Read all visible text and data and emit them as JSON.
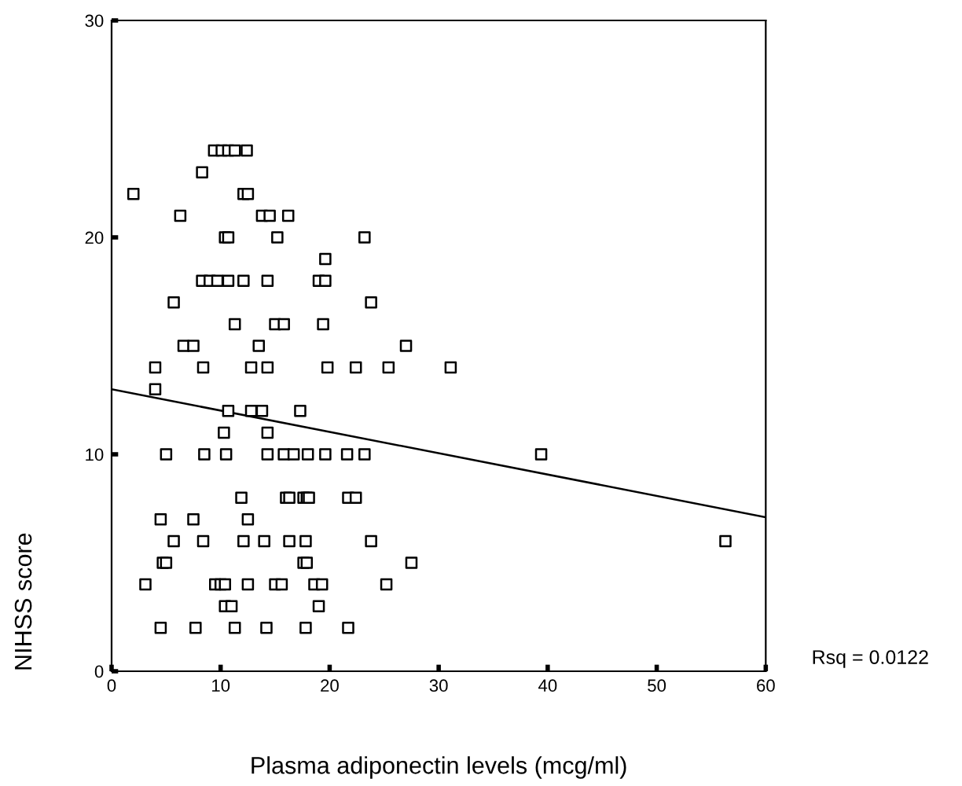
{
  "chart_data": {
    "type": "scatter",
    "xlabel": "Plasma adiponectin levels (mcg/ml)",
    "ylabel": "NIHSS score",
    "annotations": [
      "Rsq = 0.0122"
    ],
    "xlim": [
      0,
      60
    ],
    "ylim": [
      0,
      30
    ],
    "xticks": [
      0,
      10,
      20,
      30,
      40,
      50,
      60
    ],
    "yticks": [
      0,
      10,
      20,
      30
    ],
    "grid": false,
    "legend": false,
    "marker": "square",
    "series": [
      {
        "color": "#000000",
        "x": [
          9.4,
          10.1,
          10.7,
          11.3,
          12.4,
          8.3,
          2.0,
          12.1,
          12.5,
          6.3,
          13.8,
          14.5,
          16.2,
          10.4,
          10.7,
          15.2,
          23.2,
          19.6,
          8.3,
          9.0,
          9.7,
          10.7,
          12.1,
          14.3,
          19.0,
          19.6,
          5.7,
          23.8,
          11.3,
          15.0,
          15.8,
          19.4,
          6.6,
          7.5,
          13.5,
          27.0,
          4.0,
          8.4,
          12.8,
          14.3,
          19.8,
          22.4,
          25.4,
          31.1,
          4.0,
          10.7,
          12.8,
          13.8,
          17.3,
          10.3,
          14.3,
          5.0,
          8.5,
          10.5,
          14.3,
          15.8,
          16.7,
          18.0,
          19.6,
          21.6,
          23.2,
          39.4,
          11.9,
          16.0,
          16.3,
          17.6,
          17.9,
          18.1,
          21.7,
          22.4,
          4.5,
          7.5,
          12.5,
          5.7,
          8.4,
          12.1,
          14.0,
          16.3,
          17.8,
          23.8,
          56.3,
          4.7,
          5.0,
          17.6,
          17.9,
          27.5,
          3.1,
          9.5,
          10.0,
          10.4,
          12.5,
          15.0,
          15.6,
          18.6,
          19.3,
          25.2,
          10.4,
          11.0,
          19.0,
          4.5,
          7.7,
          11.3,
          14.2,
          17.8,
          21.7
        ],
        "values": [
          24,
          24,
          24,
          24,
          24,
          23,
          22,
          22,
          22,
          21,
          21,
          21,
          21,
          20,
          20,
          20,
          20,
          19,
          18,
          18,
          18,
          18,
          18,
          18,
          18,
          18,
          17,
          17,
          16,
          16,
          16,
          16,
          15,
          15,
          15,
          15,
          14,
          14,
          14,
          14,
          14,
          14,
          14,
          14,
          13,
          12,
          12,
          12,
          12,
          11,
          11,
          10,
          10,
          10,
          10,
          10,
          10,
          10,
          10,
          10,
          10,
          10,
          8,
          8,
          8,
          8,
          8,
          8,
          8,
          8,
          7,
          7,
          7,
          6,
          6,
          6,
          6,
          6,
          6,
          6,
          6,
          5,
          5,
          5,
          5,
          5,
          4,
          4,
          4,
          4,
          4,
          4,
          4,
          4,
          4,
          4,
          3,
          3,
          3,
          2,
          2,
          2,
          2,
          2,
          2
        ]
      },
      {
        "type": "line",
        "color": "#000000",
        "x": [
          0,
          60
        ],
        "values": [
          13.0,
          7.1
        ],
        "marker": "none",
        "line_style": "solid"
      }
    ]
  }
}
